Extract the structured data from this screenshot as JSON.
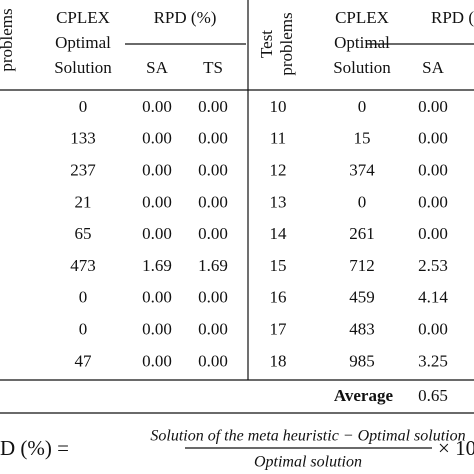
{
  "left_header": {
    "problems": "problems",
    "cplex": [
      "CPLEX",
      "Optimal",
      "Solution"
    ],
    "rpd": "RPD (%)",
    "sa": "SA",
    "ts": "TS"
  },
  "right_header": {
    "test_problems": [
      "Test",
      "problems"
    ],
    "cplex": [
      "CPLEX",
      "Optimal",
      "Solution"
    ],
    "rpd": "RPD (",
    "sa": "SA"
  },
  "left_rows": [
    [
      "0",
      "0.00",
      "0.00"
    ],
    [
      "133",
      "0.00",
      "0.00"
    ],
    [
      "237",
      "0.00",
      "0.00"
    ],
    [
      "21",
      "0.00",
      "0.00"
    ],
    [
      "65",
      "0.00",
      "0.00"
    ],
    [
      "473",
      "1.69",
      "1.69"
    ],
    [
      "0",
      "0.00",
      "0.00"
    ],
    [
      "0",
      "0.00",
      "0.00"
    ],
    [
      "47",
      "0.00",
      "0.00"
    ]
  ],
  "right_rows": [
    [
      "10",
      "0",
      "0.00"
    ],
    [
      "11",
      "15",
      "0.00"
    ],
    [
      "12",
      "374",
      "0.00"
    ],
    [
      "13",
      "0",
      "0.00"
    ],
    [
      "14",
      "261",
      "0.00"
    ],
    [
      "15",
      "712",
      "2.53"
    ],
    [
      "16",
      "459",
      "4.14"
    ],
    [
      "17",
      "483",
      "0.00"
    ],
    [
      "18",
      "985",
      "3.25"
    ]
  ],
  "average": {
    "label": "Average",
    "value": "0.65"
  },
  "formula": {
    "lhs": "D (%) =",
    "numerator": "Solution of the meta heuristic − Optimal solution",
    "denominator": "Optimal solution",
    "rhs": "× 10"
  }
}
